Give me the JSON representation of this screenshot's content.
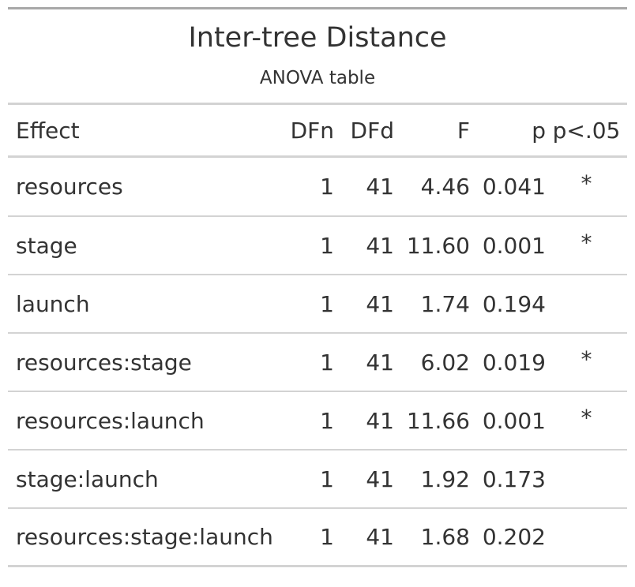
{
  "table": {
    "title": "Inter-tree Distance",
    "subtitle": "ANOVA table",
    "columns": [
      "Effect",
      "DFn",
      "DFd",
      "F",
      "p",
      "p<.05"
    ],
    "rows": [
      {
        "effect": "resources",
        "dfn": "1",
        "dfd": "41",
        "f": "4.46",
        "p": "0.041",
        "sig": "*"
      },
      {
        "effect": "stage",
        "dfn": "1",
        "dfd": "41",
        "f": "11.60",
        "p": "0.001",
        "sig": "*"
      },
      {
        "effect": "launch",
        "dfn": "1",
        "dfd": "41",
        "f": "1.74",
        "p": "0.194",
        "sig": ""
      },
      {
        "effect": "resources:stage",
        "dfn": "1",
        "dfd": "41",
        "f": "6.02",
        "p": "0.019",
        "sig": "*"
      },
      {
        "effect": "resources:launch",
        "dfn": "1",
        "dfd": "41",
        "f": "11.66",
        "p": "0.001",
        "sig": "*"
      },
      {
        "effect": "stage:launch",
        "dfn": "1",
        "dfd": "41",
        "f": "1.92",
        "p": "0.173",
        "sig": ""
      },
      {
        "effect": "resources:stage:launch",
        "dfn": "1",
        "dfd": "41",
        "f": "1.68",
        "p": "0.202",
        "sig": ""
      }
    ]
  }
}
